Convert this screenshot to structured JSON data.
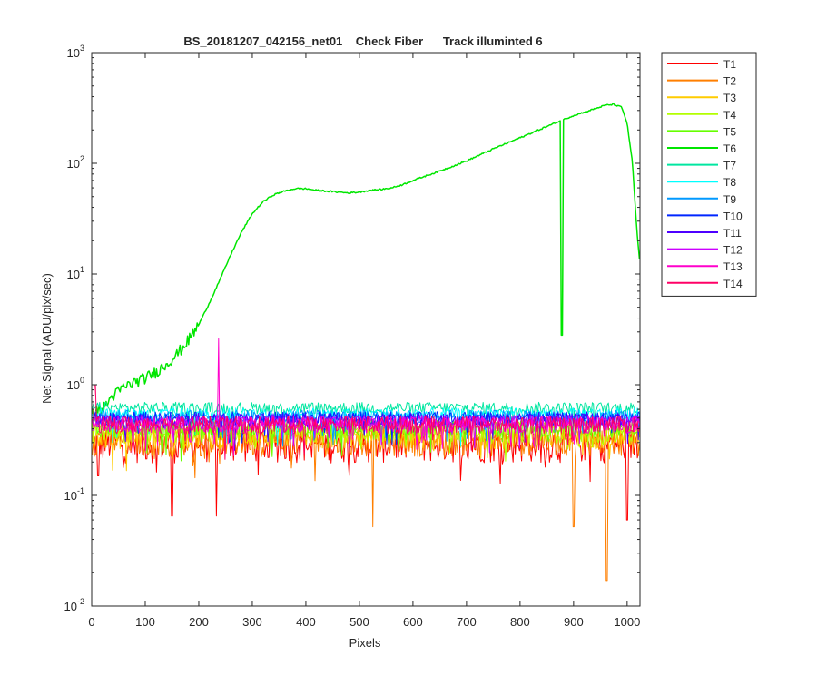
{
  "chart_data": {
    "type": "line",
    "title": "BS_20181207_042156_net01    Check Fiber      Track illuminted 6",
    "xlabel": "Pixels",
    "ylabel": "Net Signal (ADU/pix/sec)",
    "xlim": [
      0,
      1024
    ],
    "ylim": [
      0.01,
      1000
    ],
    "yscale": "log",
    "x_ticks": [
      0,
      100,
      200,
      300,
      400,
      500,
      600,
      700,
      800,
      900,
      1000
    ],
    "x_tick_labels": [
      "0",
      "100",
      "200",
      "300",
      "400",
      "500",
      "600",
      "700",
      "800",
      "900",
      "1000"
    ],
    "y_ticks": [
      0.01,
      0.1,
      1,
      10,
      100,
      1000
    ],
    "y_tick_labels": [
      {
        "base": "10",
        "exp": "-2"
      },
      {
        "base": "10",
        "exp": "-1"
      },
      {
        "base": "10",
        "exp": "0"
      },
      {
        "base": "10",
        "exp": "1"
      },
      {
        "base": "10",
        "exp": "2"
      },
      {
        "base": "10",
        "exp": "3"
      }
    ],
    "grid": false,
    "legend_position": "outside-right",
    "illuminated_track": "T6",
    "illuminated_profile": {
      "x": [
        10,
        20,
        40,
        60,
        80,
        100,
        120,
        140,
        160,
        180,
        200,
        220,
        240,
        260,
        280,
        300,
        320,
        340,
        360,
        380,
        400,
        420,
        440,
        460,
        480,
        500,
        520,
        540,
        560,
        580,
        600,
        650,
        700,
        750,
        800,
        850,
        900,
        930,
        960,
        975,
        990,
        1000,
        1010,
        1018,
        1024
      ],
      "y": [
        0.58,
        0.6,
        0.8,
        0.95,
        1.05,
        1.15,
        1.3,
        1.55,
        1.9,
        2.5,
        3.5,
        5.5,
        9,
        15,
        24,
        35,
        45,
        52,
        56,
        59,
        59,
        57,
        56,
        55,
        54,
        55,
        57,
        58,
        60,
        64,
        70,
        85,
        105,
        135,
        170,
        215,
        270,
        300,
        335,
        340,
        320,
        230,
        100,
        25,
        12
      ]
    },
    "spikes": [
      {
        "series": "T13",
        "x": 237,
        "y": 2.6
      },
      {
        "series": "T6",
        "x": 878,
        "y": 2.8
      },
      {
        "series": "T14",
        "x": 6,
        "y": 1.0
      }
    ],
    "dips": [
      {
        "series": "T1",
        "x": 12,
        "y": 0.15
      },
      {
        "series": "T1",
        "x": 150,
        "y": 0.065
      },
      {
        "series": "T1",
        "x": 233,
        "y": 0.065
      },
      {
        "series": "T2",
        "x": 525,
        "y": 0.052
      },
      {
        "series": "T2",
        "x": 900,
        "y": 0.052
      },
      {
        "series": "T2",
        "x": 962,
        "y": 0.017
      },
      {
        "series": "T1",
        "x": 1000,
        "y": 0.06
      }
    ],
    "series": [
      {
        "name": "T1",
        "color": "#ff0000",
        "level": 0.3,
        "spread": 0.35
      },
      {
        "name": "T2",
        "color": "#ff7f00",
        "level": 0.32,
        "spread": 0.3
      },
      {
        "name": "T3",
        "color": "#ffcc00",
        "level": 0.35,
        "spread": 0.25
      },
      {
        "name": "T4",
        "color": "#b3ff00",
        "level": 0.38,
        "spread": 0.22
      },
      {
        "name": "T5",
        "color": "#66ff00",
        "level": 0.42,
        "spread": 0.2
      },
      {
        "name": "T6",
        "color": "#00e600",
        "level": 0.6,
        "spread": 0.1
      },
      {
        "name": "T7",
        "color": "#00e6a0",
        "level": 0.62,
        "spread": 0.12
      },
      {
        "name": "T8",
        "color": "#00ffff",
        "level": 0.55,
        "spread": 0.12
      },
      {
        "name": "T9",
        "color": "#0099ff",
        "level": 0.52,
        "spread": 0.13
      },
      {
        "name": "T10",
        "color": "#0026ff",
        "level": 0.5,
        "spread": 0.14
      },
      {
        "name": "T11",
        "color": "#4d00ff",
        "level": 0.48,
        "spread": 0.15
      },
      {
        "name": "T12",
        "color": "#cc00ff",
        "level": 0.46,
        "spread": 0.16
      },
      {
        "name": "T13",
        "color": "#ff00cc",
        "level": 0.44,
        "spread": 0.17
      },
      {
        "name": "T14",
        "color": "#ff0066",
        "level": 0.44,
        "spread": 0.18
      }
    ]
  }
}
